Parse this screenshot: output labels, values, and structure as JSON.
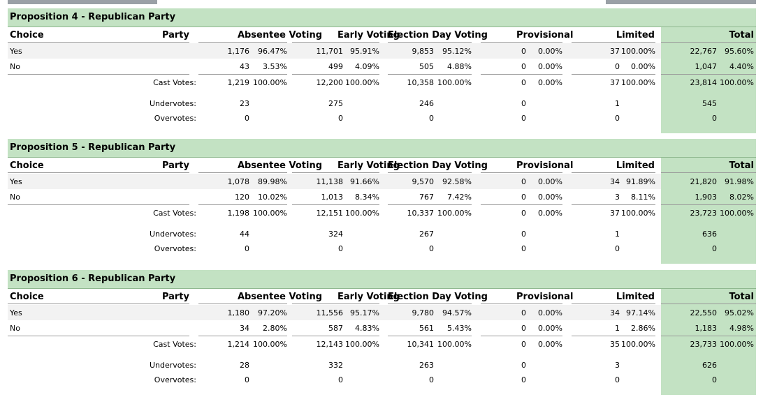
{
  "headers": {
    "choice": "Choice",
    "party": "Party",
    "absentee": "Absentee Voting",
    "early": "Early Voting",
    "election_day": "Election Day Voting",
    "provisional": "Provisional",
    "limited": "Limited",
    "total": "Total"
  },
  "labels": {
    "cast": "Cast Votes:",
    "under": "Undervotes:",
    "over": "Overvotes:"
  },
  "sections": [
    {
      "title": "Proposition 4 - Republican Party",
      "rows": [
        {
          "choice": "Yes",
          "absentee": [
            "1,176",
            "96.47%"
          ],
          "early": [
            "11,701",
            "95.91%"
          ],
          "eday": [
            "9,853",
            "95.12%"
          ],
          "prov": [
            "0",
            "0.00%"
          ],
          "lim": [
            "37",
            "100.00%"
          ],
          "total": [
            "22,767",
            "95.60%"
          ]
        },
        {
          "choice": "No",
          "absentee": [
            "43",
            "3.53%"
          ],
          "early": [
            "499",
            "4.09%"
          ],
          "eday": [
            "505",
            "4.88%"
          ],
          "prov": [
            "0",
            "0.00%"
          ],
          "lim": [
            "0",
            "0.00%"
          ],
          "total": [
            "1,047",
            "4.40%"
          ]
        }
      ],
      "cast": {
        "absentee": [
          "1,219",
          "100.00%"
        ],
        "early": [
          "12,200",
          "100.00%"
        ],
        "eday": [
          "10,358",
          "100.00%"
        ],
        "prov": [
          "0",
          "0.00%"
        ],
        "lim": [
          "37",
          "100.00%"
        ],
        "total": [
          "23,814",
          "100.00%"
        ]
      },
      "under": {
        "absentee": "23",
        "early": "275",
        "eday": "246",
        "prov": "0",
        "lim": "1",
        "total": "545"
      },
      "over": {
        "absentee": "0",
        "early": "0",
        "eday": "0",
        "prov": "0",
        "lim": "0",
        "total": "0"
      }
    },
    {
      "title": "Proposition 5 - Republican Party",
      "rows": [
        {
          "choice": "Yes",
          "absentee": [
            "1,078",
            "89.98%"
          ],
          "early": [
            "11,138",
            "91.66%"
          ],
          "eday": [
            "9,570",
            "92.58%"
          ],
          "prov": [
            "0",
            "0.00%"
          ],
          "lim": [
            "34",
            "91.89%"
          ],
          "total": [
            "21,820",
            "91.98%"
          ]
        },
        {
          "choice": "No",
          "absentee": [
            "120",
            "10.02%"
          ],
          "early": [
            "1,013",
            "8.34%"
          ],
          "eday": [
            "767",
            "7.42%"
          ],
          "prov": [
            "0",
            "0.00%"
          ],
          "lim": [
            "3",
            "8.11%"
          ],
          "total": [
            "1,903",
            "8.02%"
          ]
        }
      ],
      "cast": {
        "absentee": [
          "1,198",
          "100.00%"
        ],
        "early": [
          "12,151",
          "100.00%"
        ],
        "eday": [
          "10,337",
          "100.00%"
        ],
        "prov": [
          "0",
          "0.00%"
        ],
        "lim": [
          "37",
          "100.00%"
        ],
        "total": [
          "23,723",
          "100.00%"
        ]
      },
      "under": {
        "absentee": "44",
        "early": "324",
        "eday": "267",
        "prov": "0",
        "lim": "1",
        "total": "636"
      },
      "over": {
        "absentee": "0",
        "early": "0",
        "eday": "0",
        "prov": "0",
        "lim": "0",
        "total": "0"
      }
    },
    {
      "title": "Proposition 6 - Republican Party",
      "rows": [
        {
          "choice": "Yes",
          "absentee": [
            "1,180",
            "97.20%"
          ],
          "early": [
            "11,556",
            "95.17%"
          ],
          "eday": [
            "9,780",
            "94.57%"
          ],
          "prov": [
            "0",
            "0.00%"
          ],
          "lim": [
            "34",
            "97.14%"
          ],
          "total": [
            "22,550",
            "95.02%"
          ]
        },
        {
          "choice": "No",
          "absentee": [
            "34",
            "2.80%"
          ],
          "early": [
            "587",
            "4.83%"
          ],
          "eday": [
            "561",
            "5.43%"
          ],
          "prov": [
            "0",
            "0.00%"
          ],
          "lim": [
            "1",
            "2.86%"
          ],
          "total": [
            "1,183",
            "4.98%"
          ]
        }
      ],
      "cast": {
        "absentee": [
          "1,214",
          "100.00%"
        ],
        "early": [
          "12,143",
          "100.00%"
        ],
        "eday": [
          "10,341",
          "100.00%"
        ],
        "prov": [
          "0",
          "0.00%"
        ],
        "lim": [
          "35",
          "100.00%"
        ],
        "total": [
          "23,733",
          "100.00%"
        ]
      },
      "under": {
        "absentee": "28",
        "early": "332",
        "eday": "263",
        "prov": "0",
        "lim": "3",
        "total": "626"
      },
      "over": {
        "absentee": "0",
        "early": "0",
        "eday": "0",
        "prov": "0",
        "lim": "0",
        "total": "0"
      }
    }
  ]
}
